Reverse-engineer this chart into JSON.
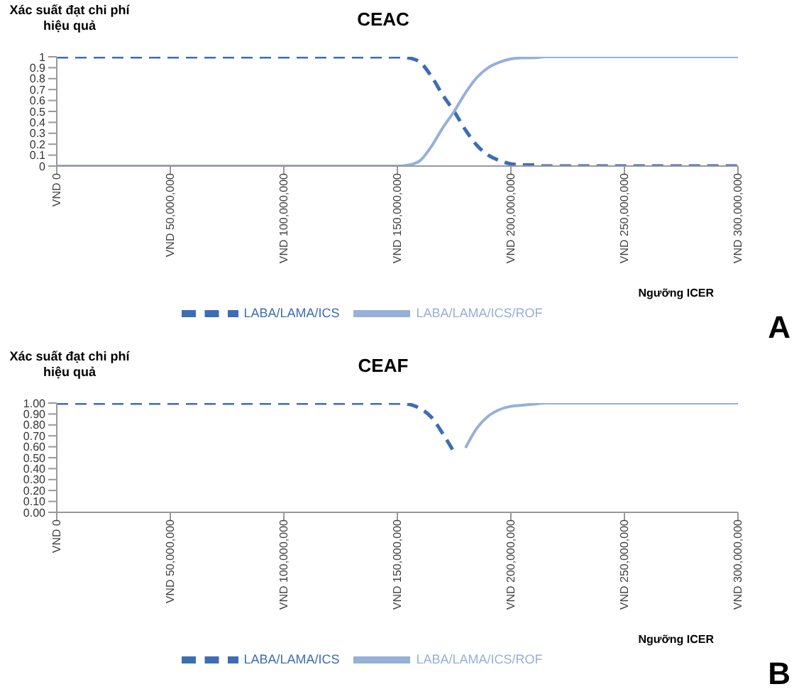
{
  "chart_data": [
    {
      "type": "line",
      "title": "CEAC",
      "ylabel": "Xác suất đạt chi phí hiệu quả",
      "xlabel": "Ngưỡng ICER",
      "annotations": [
        "A"
      ],
      "categories": [
        "VND 0",
        null,
        null,
        null,
        null,
        null,
        null,
        null,
        null,
        null,
        "VND 50,000,000",
        null,
        null,
        null,
        null,
        null,
        null,
        null,
        null,
        null,
        "VND 100,000,000",
        null,
        null,
        null,
        null,
        null,
        null,
        null,
        null,
        null,
        "VND 150,000,000",
        null,
        null,
        null,
        null,
        null,
        null,
        null,
        null,
        null,
        "VND 200,000,000",
        null,
        null,
        null,
        null,
        null,
        null,
        null,
        null,
        null,
        "VND 250,000,000",
        null,
        null,
        null,
        null,
        null,
        null,
        null,
        null,
        null,
        "VND 300,000,000"
      ],
      "series": [
        {
          "name": "LABA/LAMA/ICS",
          "color": "#3e6db5",
          "line_style": "dashed",
          "values": [
            1,
            1,
            1,
            1,
            1,
            1,
            1,
            1,
            1,
            1,
            1,
            1,
            1,
            1,
            1,
            1,
            1,
            1,
            1,
            1,
            1,
            1,
            1,
            1,
            1,
            1,
            1,
            1,
            1,
            1,
            1,
            0.99,
            0.95,
            0.82,
            0.65,
            0.5,
            0.33,
            0.19,
            0.1,
            0.05,
            0.02,
            0.01,
            0.01,
            0,
            0,
            0,
            0,
            0,
            0,
            0,
            0,
            0,
            0,
            0,
            0,
            0,
            0,
            0,
            0,
            0,
            0
          ]
        },
        {
          "name": "LABA/LAMA/ICS/ROF",
          "color": "#95b0d9",
          "line_style": "solid",
          "values": [
            0,
            0,
            0,
            0,
            0,
            0,
            0,
            0,
            0,
            0,
            0,
            0,
            0,
            0,
            0,
            0,
            0,
            0,
            0,
            0,
            0,
            0,
            0,
            0,
            0,
            0,
            0,
            0,
            0,
            0,
            0,
            0.01,
            0.05,
            0.18,
            0.35,
            0.5,
            0.67,
            0.81,
            0.9,
            0.95,
            0.98,
            0.99,
            0.99,
            1,
            1,
            1,
            1,
            1,
            1,
            1,
            1,
            1,
            1,
            1,
            1,
            1,
            1,
            1,
            1,
            1,
            1
          ]
        }
      ],
      "ylim": [
        0,
        1
      ],
      "yticks": [
        0,
        0.1,
        0.2,
        0.3,
        0.4,
        0.5,
        0.6,
        0.7,
        0.8,
        0.9,
        1
      ],
      "grid": false,
      "legend": "bottom",
      "marker": "none"
    },
    {
      "type": "line",
      "title": "CEAF",
      "ylabel": "Xác suất đạt chi phí hiệu quả",
      "xlabel": "Ngưỡng ICER",
      "annotations": [
        "B"
      ],
      "categories": [
        "VND 0",
        null,
        null,
        null,
        null,
        null,
        null,
        null,
        null,
        null,
        "VND 50,000,000",
        null,
        null,
        null,
        null,
        null,
        null,
        null,
        null,
        null,
        "VND 100,000,000",
        null,
        null,
        null,
        null,
        null,
        null,
        null,
        null,
        null,
        "VND 150,000,000",
        null,
        null,
        null,
        null,
        null,
        null,
        null,
        null,
        null,
        "VND 200,000,000",
        null,
        null,
        null,
        null,
        null,
        null,
        null,
        null,
        null,
        "VND 250,000,000",
        null,
        null,
        null,
        null,
        null,
        null,
        null,
        null,
        null,
        "VND 300,000,000"
      ],
      "series": [
        {
          "name": "LABA/LAMA/ICS",
          "color": "#3e6db5",
          "line_style": "dashed",
          "values": [
            1,
            1,
            1,
            1,
            1,
            1,
            1,
            1,
            1,
            1,
            1,
            1,
            1,
            1,
            1,
            1,
            1,
            1,
            1,
            1,
            1,
            1,
            1,
            1,
            1,
            1,
            1,
            1,
            1,
            1,
            1,
            0.99,
            0.95,
            0.87,
            0.72,
            0.55,
            null,
            null,
            null,
            null,
            null,
            null,
            null,
            null,
            null,
            null,
            null,
            null,
            null,
            null,
            null,
            null,
            null,
            null,
            null,
            null,
            null,
            null,
            null,
            null,
            null
          ]
        },
        {
          "name": "LABA/LAMA/ICS/ROF",
          "color": "#95b0d9",
          "line_style": "solid",
          "values": [
            null,
            null,
            null,
            null,
            null,
            null,
            null,
            null,
            null,
            null,
            null,
            null,
            null,
            null,
            null,
            null,
            null,
            null,
            null,
            null,
            null,
            null,
            null,
            null,
            null,
            null,
            null,
            null,
            null,
            null,
            null,
            null,
            null,
            null,
            null,
            null,
            0.59,
            0.77,
            0.88,
            0.94,
            0.97,
            0.98,
            0.99,
            1,
            1,
            1,
            1,
            1,
            1,
            1,
            1,
            1,
            1,
            1,
            1,
            1,
            1,
            1,
            1,
            1,
            1
          ]
        }
      ],
      "ylim": [
        0,
        1
      ],
      "yticks": [
        {
          "value": 0,
          "label": "0.00"
        },
        {
          "value": 0.1,
          "label": "0.10"
        },
        {
          "value": 0.2,
          "label": "0.20"
        },
        {
          "value": 0.3,
          "label": "0.30"
        },
        {
          "value": 0.4,
          "label": "0.40"
        },
        {
          "value": 0.5,
          "label": "0.50"
        },
        {
          "value": 0.6,
          "label": "0.60"
        },
        {
          "value": 0.7,
          "label": "0.70"
        },
        {
          "value": 0.8,
          "label": "0.80"
        },
        {
          "value": 0.9,
          "label": "0.90"
        },
        {
          "value": 1,
          "label": "1.00"
        }
      ],
      "grid": false,
      "legend": "bottom",
      "marker": "none"
    }
  ]
}
